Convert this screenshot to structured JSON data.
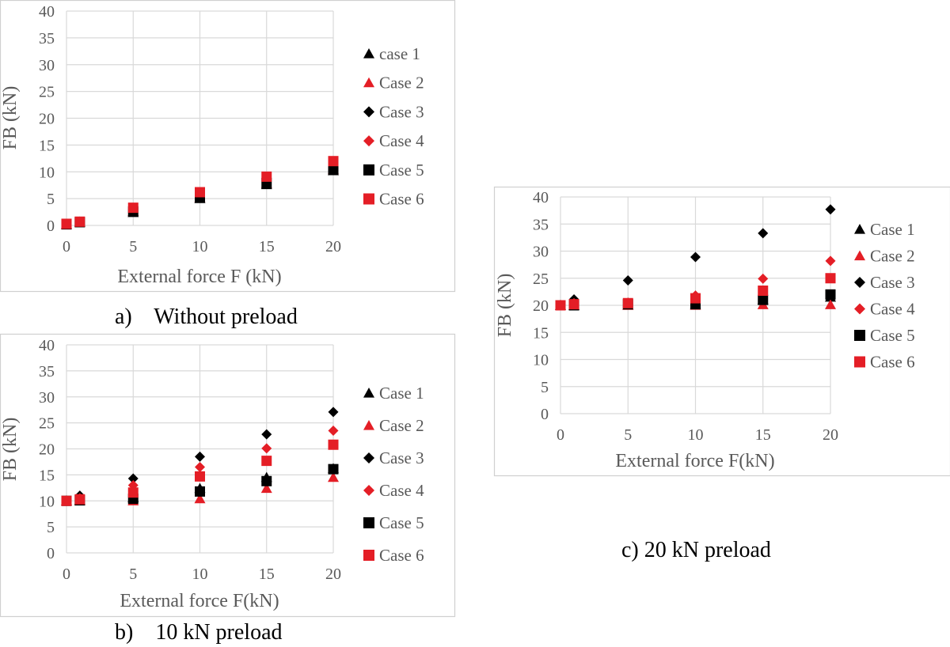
{
  "captions": {
    "a": "a)    Without preload",
    "b": "b)    10 kN preload",
    "c": "c) 20 kN preload"
  },
  "chart_data": [
    {
      "type": "scatter",
      "title": "",
      "xlabel": "External force F (kN)",
      "ylabel": "FB (kN)",
      "xlim": [
        0,
        20
      ],
      "ylim": [
        0,
        40
      ],
      "xticks": [
        0,
        5,
        10,
        15,
        20
      ],
      "yticks": [
        0,
        5,
        10,
        15,
        20,
        25,
        30,
        35,
        40
      ],
      "grid": true,
      "legend_position": "right",
      "series": [
        {
          "name": "case 1",
          "marker": "triangle",
          "color": "#000000",
          "x": [
            0,
            1,
            5,
            10,
            15,
            20
          ],
          "y": [
            0.2,
            0.6,
            2.4,
            5.0,
            7.6,
            10.2
          ]
        },
        {
          "name": "Case 2",
          "marker": "triangle",
          "color": "#e41e26",
          "x": [
            0,
            1,
            5,
            10,
            15,
            20
          ],
          "y": [
            0.2,
            0.6,
            2.6,
            5.2,
            7.8,
            10.4
          ]
        },
        {
          "name": "Case 3",
          "marker": "diamond",
          "color": "#000000",
          "x": [
            0,
            1,
            5,
            10,
            15,
            20
          ],
          "y": [
            0.3,
            0.7,
            3.0,
            6.0,
            8.8,
            11.8
          ]
        },
        {
          "name": "Case 4",
          "marker": "diamond",
          "color": "#e41e26",
          "x": [
            0,
            1,
            5,
            10,
            15,
            20
          ],
          "y": [
            0.3,
            0.7,
            3.1,
            6.0,
            8.9,
            11.9
          ]
        },
        {
          "name": "Case 5",
          "marker": "square",
          "color": "#000000",
          "x": [
            0,
            1,
            5,
            10,
            15,
            20
          ],
          "y": [
            0.2,
            0.6,
            2.6,
            5.2,
            7.9,
            10.4
          ]
        },
        {
          "name": "Case 6",
          "marker": "square",
          "color": "#e41e26",
          "x": [
            0,
            1,
            5,
            10,
            15,
            20
          ],
          "y": [
            0.3,
            0.7,
            3.3,
            6.2,
            9.1,
            12.0
          ]
        }
      ]
    },
    {
      "type": "scatter",
      "title": "",
      "xlabel": "External force F(kN)",
      "ylabel": "FB (kN)",
      "xlim": [
        0,
        20
      ],
      "ylim": [
        0,
        40
      ],
      "xticks": [
        0,
        5,
        10,
        15,
        20
      ],
      "yticks": [
        0,
        5,
        10,
        15,
        20,
        25,
        30,
        35,
        40
      ],
      "grid": true,
      "legend_position": "right",
      "series": [
        {
          "name": "Case 1",
          "marker": "triangle",
          "color": "#000000",
          "x": [
            0,
            1,
            5,
            10,
            15,
            20
          ],
          "y": [
            10.0,
            10.1,
            10.6,
            12.4,
            14.5,
            16.2
          ]
        },
        {
          "name": "Case 2",
          "marker": "triangle",
          "color": "#e41e26",
          "x": [
            0,
            1,
            5,
            10,
            15,
            20
          ],
          "y": [
            10.0,
            10.0,
            10.0,
            10.4,
            12.4,
            14.5
          ]
        },
        {
          "name": "Case 3",
          "marker": "diamond",
          "color": "#000000",
          "x": [
            0,
            1,
            5,
            10,
            15,
            20
          ],
          "y": [
            10.0,
            11.0,
            14.3,
            18.5,
            22.8,
            27.1
          ]
        },
        {
          "name": "Case 4",
          "marker": "diamond",
          "color": "#e41e26",
          "x": [
            0,
            1,
            5,
            10,
            15,
            20
          ],
          "y": [
            10.0,
            10.5,
            13.0,
            16.5,
            20.1,
            23.5
          ]
        },
        {
          "name": "Case 5",
          "marker": "square",
          "color": "#000000",
          "x": [
            0,
            1,
            5,
            10,
            15,
            20
          ],
          "y": [
            10.0,
            10.1,
            10.4,
            11.8,
            13.8,
            16.1
          ]
        },
        {
          "name": "Case 6",
          "marker": "square",
          "color": "#e41e26",
          "x": [
            0,
            1,
            5,
            10,
            15,
            20
          ],
          "y": [
            10.0,
            10.3,
            11.6,
            14.7,
            17.7,
            20.8
          ]
        }
      ]
    },
    {
      "type": "scatter",
      "title": "",
      "xlabel": "External force F(kN)",
      "ylabel": "FB (kN)",
      "xlim": [
        0,
        20
      ],
      "ylim": [
        0,
        40
      ],
      "xticks": [
        0,
        5,
        10,
        15,
        20
      ],
      "yticks": [
        0,
        5,
        10,
        15,
        20,
        25,
        30,
        35,
        40
      ],
      "grid": true,
      "legend_position": "right",
      "series": [
        {
          "name": "Case 1",
          "marker": "triangle",
          "color": "#000000",
          "x": [
            0,
            1,
            5,
            10,
            15,
            20
          ],
          "y": [
            20.0,
            20.0,
            20.0,
            20.2,
            21.0,
            21.5
          ]
        },
        {
          "name": "Case 2",
          "marker": "triangle",
          "color": "#e41e26",
          "x": [
            0,
            1,
            5,
            10,
            15,
            20
          ],
          "y": [
            20.0,
            20.0,
            20.0,
            20.0,
            20.1,
            20.1
          ]
        },
        {
          "name": "Case 3",
          "marker": "diamond",
          "color": "#000000",
          "x": [
            0,
            1,
            5,
            10,
            15,
            20
          ],
          "y": [
            20.0,
            21.1,
            24.6,
            28.9,
            33.3,
            37.7
          ]
        },
        {
          "name": "Case 4",
          "marker": "diamond",
          "color": "#e41e26",
          "x": [
            0,
            1,
            5,
            10,
            15,
            20
          ],
          "y": [
            20.0,
            20.4,
            20.5,
            21.8,
            24.9,
            28.2
          ]
        },
        {
          "name": "Case 5",
          "marker": "square",
          "color": "#000000",
          "x": [
            0,
            1,
            5,
            10,
            15,
            20
          ],
          "y": [
            20.0,
            20.0,
            20.2,
            20.2,
            21.0,
            22.0
          ]
        },
        {
          "name": "Case 6",
          "marker": "square",
          "color": "#e41e26",
          "x": [
            0,
            1,
            5,
            10,
            15,
            20
          ],
          "y": [
            20.0,
            20.2,
            20.4,
            21.3,
            22.7,
            25.0
          ]
        }
      ]
    }
  ]
}
